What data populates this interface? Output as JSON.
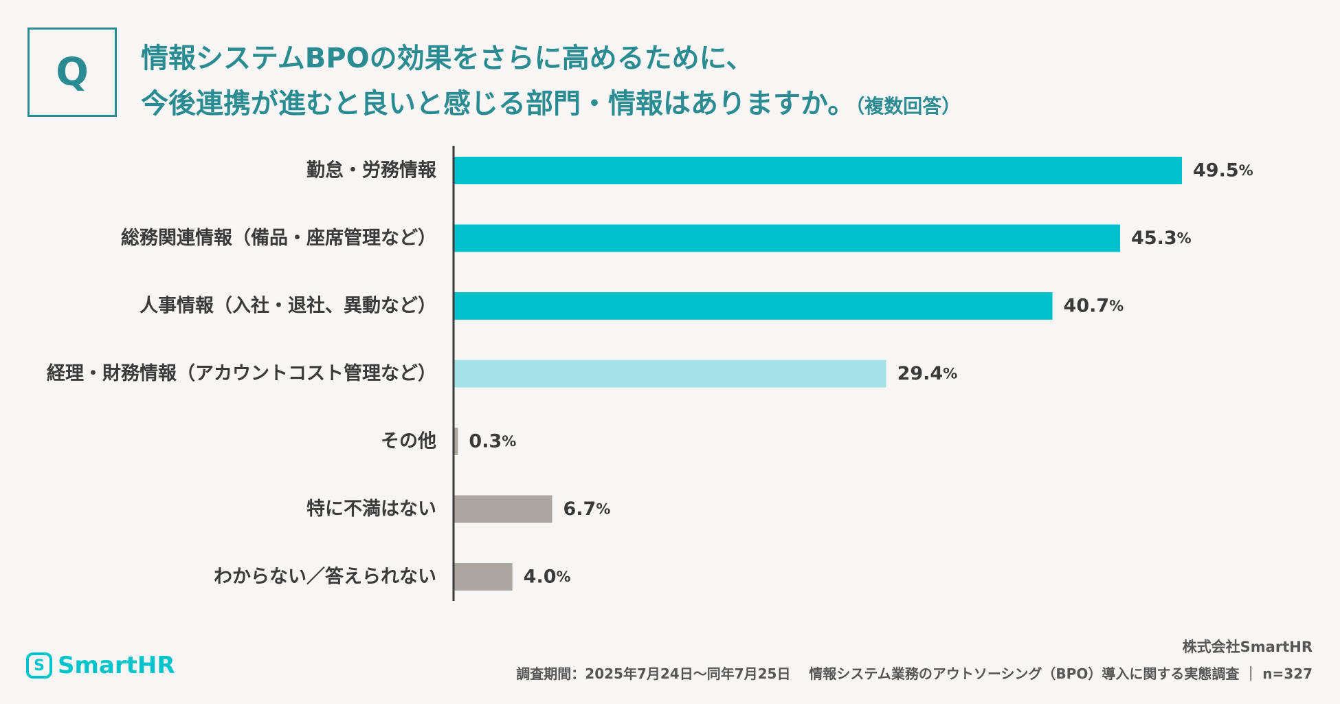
{
  "question": {
    "badge": "Q",
    "line1": "情報システムBPOの効果をさらに高めるために、",
    "line2": "今後連携が進むと良いと感じる部門・情報はありますか。",
    "line2_sub": "（複数回答）"
  },
  "chart_data": {
    "type": "bar",
    "orientation": "horizontal",
    "title": "情報システムBPOの効果をさらに高めるために、今後連携が進むと良いと感じる部門・情報はありますか。（複数回答）",
    "categories": [
      "勤怠・労務情報",
      "総務関連情報（備品・座席管理など）",
      "人事情報（入社・退社、異動など）",
      "経理・財務情報（アカウントコスト管理など）",
      "その他",
      "特に不満はない",
      "わからない／答えられない"
    ],
    "values": [
      49.5,
      45.3,
      40.7,
      29.4,
      0.3,
      6.7,
      4.0
    ],
    "value_labels": [
      "49.5",
      "45.3",
      "40.7",
      "29.4",
      "0.3",
      "6.7",
      "4.0"
    ],
    "unit": "%",
    "colors": [
      "#00c1cb",
      "#00c1cb",
      "#00c1cb",
      "#a3e3e7",
      "#aba6a0",
      "#aba6a0",
      "#aba6a0"
    ],
    "xlim": [
      0,
      55
    ],
    "xlabel": "",
    "ylabel": ""
  },
  "footer": {
    "company": "株式会社SmartHR",
    "note": "調査期間：2025年7月24日〜同年7月25日　 情報システム業務のアウトソーシング（BPO）導入に関する実態調査 ｜ n=327"
  },
  "logo": {
    "mark": "S",
    "text": "SmartHR",
    "color": "#00c4cc"
  }
}
